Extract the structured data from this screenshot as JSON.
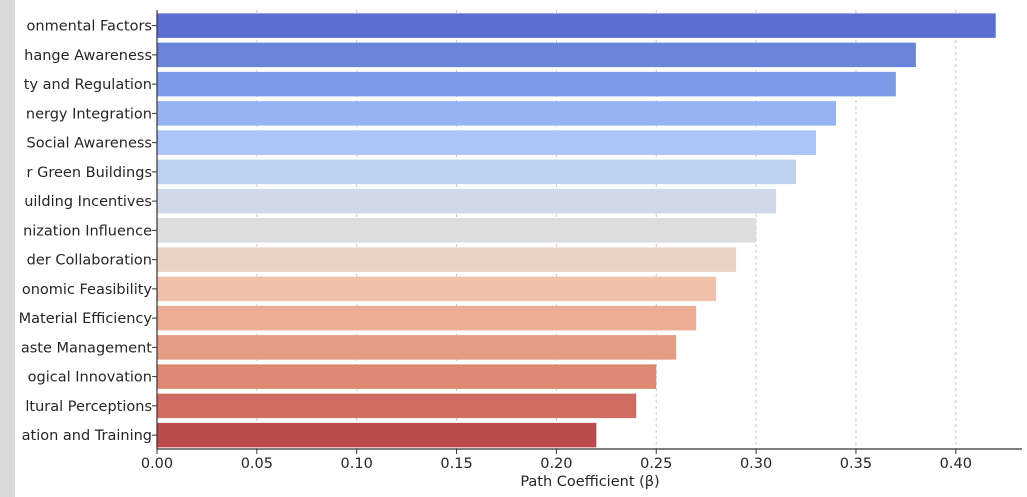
{
  "chart_data": {
    "type": "bar",
    "orientation": "horizontal",
    "categories": [
      "onmental Factors",
      "hange Awareness",
      "ty and Regulation",
      "nergy Integration",
      "Social Awareness",
      "r Green Buildings",
      "uilding Incentives",
      "nization Influence",
      "der Collaboration",
      "onomic Feasibility",
      "Material Efficiency",
      "aste Management",
      "ogical Innovation",
      "ltural Perceptions",
      "ation and Training"
    ],
    "values": [
      0.42,
      0.38,
      0.37,
      0.34,
      0.33,
      0.32,
      0.31,
      0.3,
      0.29,
      0.28,
      0.27,
      0.26,
      0.25,
      0.24,
      0.22
    ],
    "colors": [
      "#5b6fd0",
      "#6a84dc",
      "#7c9ae6",
      "#97b2f3",
      "#aac4f6",
      "#bdd1f0",
      "#d0d9e8",
      "#dddddd",
      "#e8d3c6",
      "#eec2ab",
      "#ebae94",
      "#e49c82",
      "#dc8872",
      "#cf6d62",
      "#bb4c4b"
    ],
    "xlabel": "Path Coefficient (β)",
    "ylabel": "",
    "xlim": [
      0.0,
      0.435
    ],
    "xticks": [
      "0.00",
      "0.05",
      "0.10",
      "0.15",
      "0.20",
      "0.25",
      "0.30",
      "0.35",
      "0.40"
    ],
    "grid": "vertical dashed"
  }
}
